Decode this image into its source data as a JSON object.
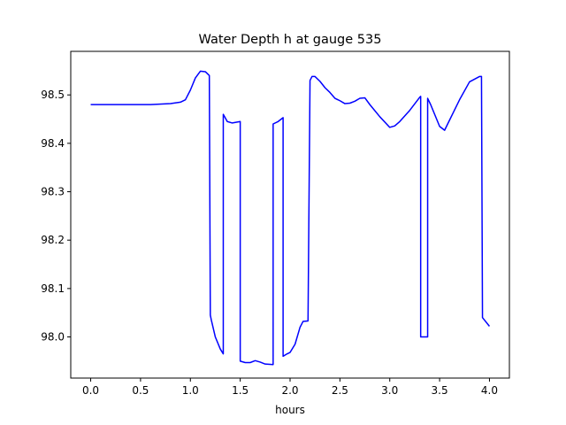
{
  "chart_data": {
    "type": "line",
    "title": "Water Depth h at gauge 535",
    "xlabel": "hours",
    "ylabel": "",
    "xlim": [
      -0.2,
      4.2
    ],
    "ylim": [
      97.915,
      98.59
    ],
    "xticks": [
      0.0,
      0.5,
      1.0,
      1.5,
      2.0,
      2.5,
      3.0,
      3.5,
      4.0
    ],
    "xtick_labels": [
      "0.0",
      "0.5",
      "1.0",
      "1.5",
      "2.0",
      "2.5",
      "3.0",
      "3.5",
      "4.0"
    ],
    "yticks": [
      98.0,
      98.1,
      98.2,
      98.3,
      98.4,
      98.5
    ],
    "ytick_labels": [
      "98.0",
      "98.1",
      "98.2",
      "98.3",
      "98.4",
      "98.5"
    ],
    "grid": false,
    "series": [
      {
        "name": "",
        "color": "#0000ff",
        "x": [
          0.0,
          0.2,
          0.4,
          0.6,
          0.8,
          0.9,
          0.95,
          1.0,
          1.05,
          1.1,
          1.15,
          1.19,
          1.2,
          1.21,
          1.25,
          1.3,
          1.33,
          1.33,
          1.37,
          1.42,
          1.5,
          1.5,
          1.55,
          1.6,
          1.65,
          1.7,
          1.75,
          1.83,
          1.83,
          1.88,
          1.93,
          1.93,
          1.97,
          2.0,
          2.05,
          2.1,
          2.13,
          2.18,
          2.2,
          2.22,
          2.25,
          2.3,
          2.35,
          2.4,
          2.45,
          2.5,
          2.55,
          2.6,
          2.65,
          2.7,
          2.75,
          2.8,
          2.9,
          3.0,
          3.05,
          3.1,
          3.2,
          3.3,
          3.31,
          3.31,
          3.38,
          3.38,
          3.41,
          3.5,
          3.55,
          3.6,
          3.7,
          3.8,
          3.9,
          3.92,
          3.93,
          4.0
        ],
        "y": [
          98.48,
          98.48,
          98.48,
          98.48,
          98.482,
          98.485,
          98.49,
          98.51,
          98.535,
          98.549,
          98.548,
          98.54,
          98.045,
          98.035,
          98.0,
          97.975,
          97.965,
          98.46,
          98.445,
          98.442,
          98.445,
          97.95,
          97.947,
          97.947,
          97.951,
          97.948,
          97.944,
          97.943,
          98.44,
          98.445,
          98.453,
          97.96,
          97.965,
          97.968,
          97.985,
          98.02,
          98.032,
          98.033,
          98.53,
          98.538,
          98.538,
          98.528,
          98.515,
          98.505,
          98.493,
          98.488,
          98.482,
          98.483,
          98.487,
          98.493,
          98.494,
          98.48,
          98.455,
          98.433,
          98.436,
          98.445,
          98.468,
          98.495,
          98.497,
          98.0,
          98.0,
          98.493,
          98.48,
          98.435,
          98.427,
          98.448,
          98.49,
          98.527,
          98.538,
          98.538,
          98.04,
          98.022
        ]
      }
    ]
  }
}
